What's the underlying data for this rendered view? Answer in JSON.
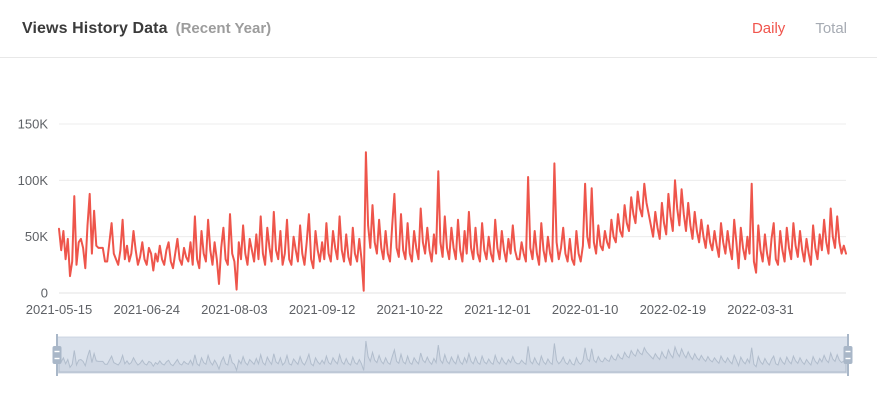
{
  "header": {
    "title": "Views History Data",
    "subtitle": "(Recent Year)",
    "tabs": [
      {
        "label": "Daily",
        "active": true
      },
      {
        "label": "Total",
        "active": false
      }
    ]
  },
  "colors": {
    "line": "#ee554b",
    "active_tab": "#f0544c",
    "inactive_tab": "#a6abb3",
    "axis_label": "#5e6166",
    "gridline": "#ececec",
    "axis_line": "#e3e3e3",
    "slider_bg": "#e5eaf2",
    "slider_border": "#d2dae5",
    "slider_line": "#b6c1cf",
    "slider_fill": "#d8dfe9",
    "slider_handle": "#a9b7c8"
  },
  "chart_data": {
    "type": "line",
    "title": "Views History Data (Recent Year)",
    "series_name": "Daily Views",
    "unit": "K",
    "ylim": [
      0,
      150
    ],
    "grid": "horizontal",
    "legend": "none",
    "y_ticks": [
      {
        "label": "0",
        "value": 0
      },
      {
        "label": "50K",
        "value": 50
      },
      {
        "label": "100K",
        "value": 100
      },
      {
        "label": "150K",
        "value": 150
      }
    ],
    "x_start_date": "2021-05-15",
    "x_ticks": [
      {
        "label": "2021-05-15",
        "day": 0
      },
      {
        "label": "2021-06-24",
        "day": 40
      },
      {
        "label": "2021-08-03",
        "day": 80
      },
      {
        "label": "2021-09-12",
        "day": 120
      },
      {
        "label": "2021-10-22",
        "day": 160
      },
      {
        "label": "2021-12-01",
        "day": 200
      },
      {
        "label": "2022-01-10",
        "day": 240
      },
      {
        "label": "2022-02-19",
        "day": 280
      },
      {
        "label": "2022-03-31",
        "day": 320
      }
    ],
    "values_unit": "thousands of daily views",
    "values": [
      57,
      38,
      55,
      30,
      48,
      15,
      28,
      86,
      25,
      45,
      48,
      40,
      22,
      60,
      88,
      35,
      73,
      42,
      40,
      40,
      40,
      28,
      28,
      45,
      62,
      35,
      30,
      25,
      38,
      65,
      30,
      42,
      28,
      35,
      55,
      38,
      25,
      32,
      45,
      30,
      25,
      40,
      35,
      20,
      35,
      28,
      42,
      30,
      25,
      38,
      45,
      28,
      22,
      35,
      48,
      30,
      25,
      40,
      32,
      28,
      45,
      25,
      68,
      30,
      22,
      55,
      35,
      28,
      65,
      38,
      25,
      45,
      30,
      8,
      40,
      58,
      30,
      25,
      70,
      35,
      28,
      3,
      45,
      30,
      60,
      35,
      25,
      48,
      38,
      28,
      52,
      30,
      68,
      35,
      25,
      58,
      40,
      28,
      72,
      38,
      30,
      55,
      25,
      35,
      65,
      30,
      25,
      50,
      38,
      28,
      60,
      35,
      25,
      45,
      70,
      30,
      22,
      55,
      38,
      28,
      45,
      30,
      62,
      35,
      28,
      55,
      40,
      30,
      68,
      38,
      28,
      52,
      32,
      25,
      58,
      35,
      28,
      48,
      30,
      2,
      125,
      60,
      40,
      78,
      45,
      35,
      65,
      40,
      30,
      55,
      35,
      28,
      60,
      88,
      40,
      32,
      70,
      38,
      30,
      62,
      35,
      28,
      55,
      40,
      30,
      75,
      45,
      35,
      58,
      38,
      28,
      52,
      35,
      108,
      45,
      32,
      68,
      40,
      30,
      58,
      40,
      30,
      65,
      38,
      28,
      55,
      35,
      72,
      40,
      30,
      58,
      35,
      28,
      62,
      38,
      30,
      50,
      35,
      28,
      65,
      40,
      30,
      55,
      38,
      28,
      48,
      35,
      60,
      38,
      30,
      30,
      45,
      35,
      28,
      103,
      40,
      30,
      55,
      35,
      25,
      62,
      38,
      28,
      50,
      35,
      28,
      115,
      45,
      30,
      40,
      58,
      35,
      28,
      48,
      30,
      25,
      55,
      35,
      28,
      42,
      97,
      50,
      40,
      93,
      45,
      35,
      60,
      42,
      38,
      55,
      45,
      40,
      65,
      50,
      45,
      70,
      55,
      50,
      78,
      62,
      55,
      85,
      70,
      62,
      90,
      75,
      68,
      97,
      80,
      70,
      60,
      50,
      72,
      58,
      48,
      80,
      62,
      52,
      88,
      68,
      55,
      100,
      75,
      60,
      92,
      70,
      55,
      80,
      60,
      48,
      72,
      55,
      45,
      65,
      50,
      40,
      60,
      45,
      38,
      55,
      42,
      32,
      62,
      45,
      35,
      55,
      40,
      30,
      65,
      45,
      22,
      58,
      40,
      30,
      50,
      35,
      97,
      28,
      18,
      60,
      38,
      28,
      52,
      35,
      25,
      48,
      62,
      30,
      25,
      55,
      38,
      28,
      58,
      40,
      30,
      62,
      42,
      32,
      55,
      38,
      28,
      48,
      35,
      25,
      60,
      40,
      30,
      52,
      38,
      65,
      45,
      35,
      75,
      50,
      40,
      68,
      45,
      35,
      42,
      35
    ]
  },
  "slider": {
    "range_start_pct": 0,
    "range_end_pct": 100
  }
}
